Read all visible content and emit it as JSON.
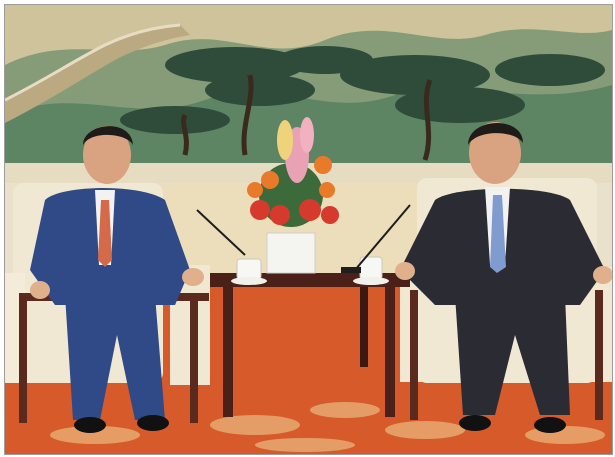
{
  "photo": {
    "subject": "meeting-photo",
    "colors": {
      "mural_sky": "#c9bf98",
      "mountain_green": "#4f7a5a",
      "pine_dark": "#2f4b3a",
      "great_wall": "#b8a67c",
      "wall_trim": "#e7dcc2",
      "carpet": "#d65a2a",
      "carpet_pattern": "#e9b47a",
      "chair_cream": "#f1e8d3",
      "chair_wood": "#5a2a1e",
      "table_wood": "#4a2018",
      "suit_blue": "#2f4a86",
      "suit_dark": "#2b2b33",
      "tie_orange": "#d46a4a",
      "tie_blue": "#7f9bd0",
      "flowers_red": "#d63a2c",
      "flowers_orange": "#e87a2a",
      "flowers_pink": "#e9a2b4"
    }
  }
}
